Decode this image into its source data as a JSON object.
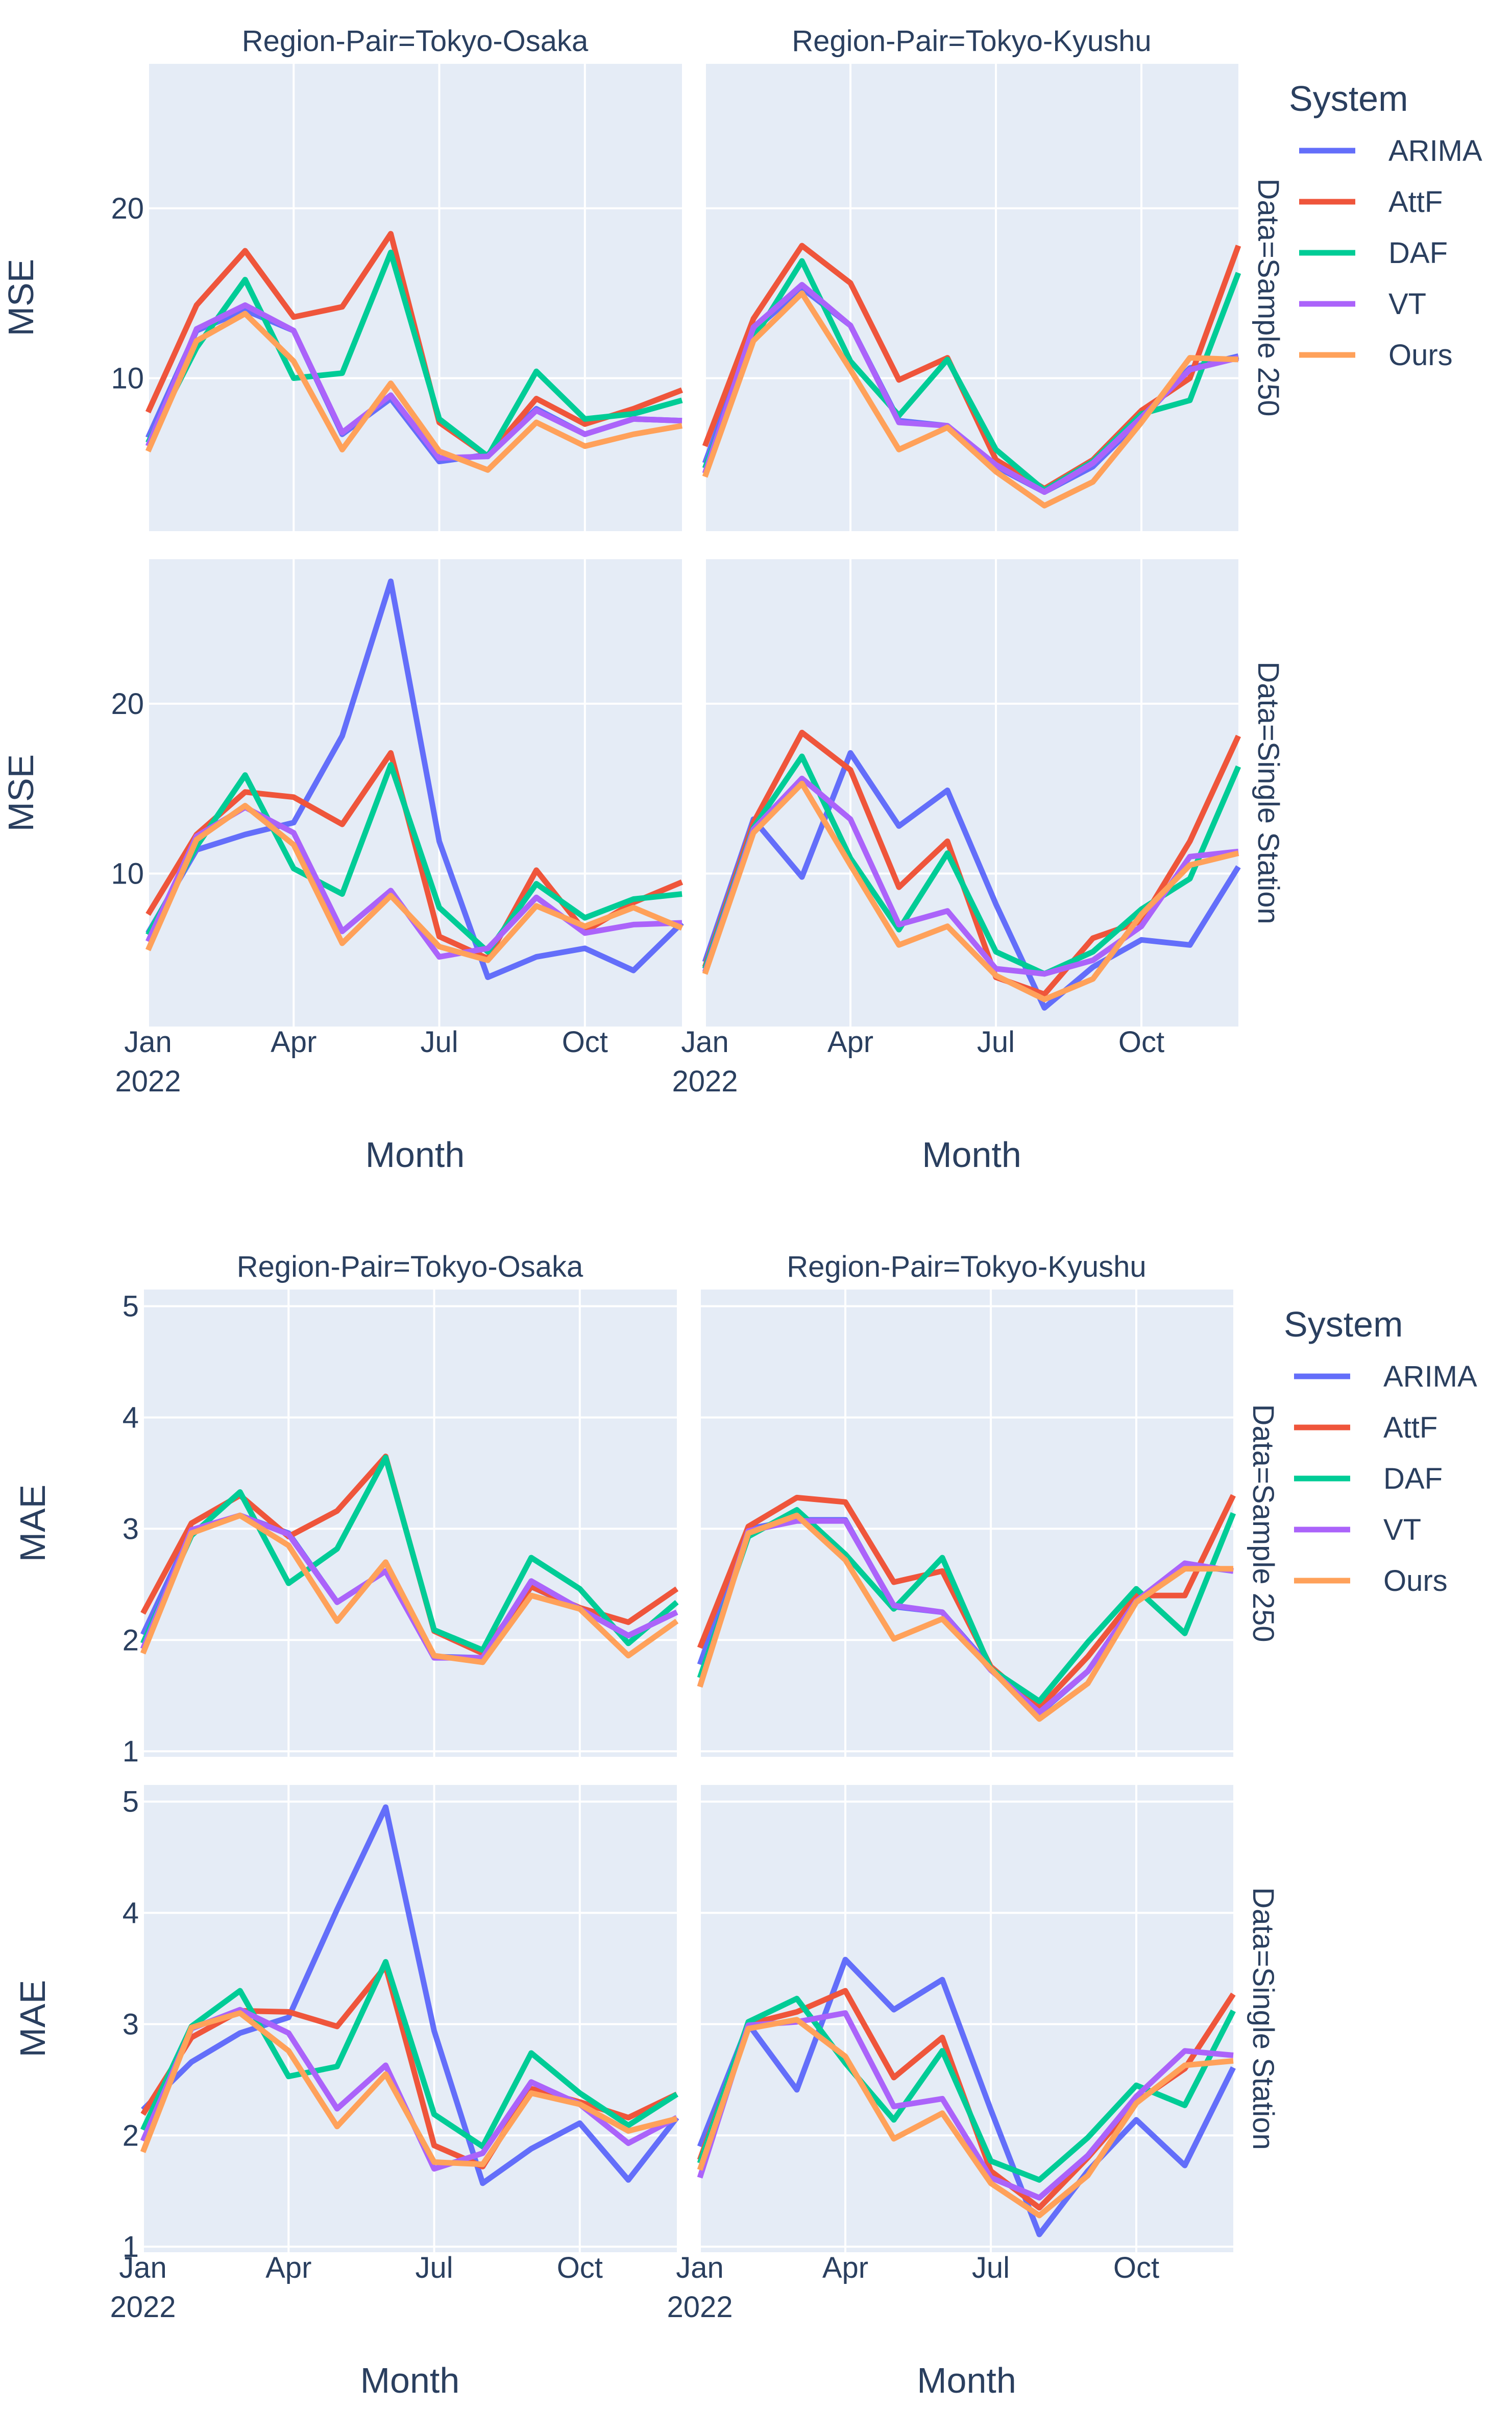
{
  "colors": {
    "plot_bg": "#E5ECF6",
    "grid": "#ffffff",
    "text": "#2a3f5f",
    "ARIMA": "#636EFA",
    "AttF": "#EF553B",
    "DAF": "#00CC96",
    "VT": "#AB63FA",
    "Ours": "#FFA15A"
  },
  "chart_data": [
    {
      "type": "line",
      "metric": "MSE",
      "ylabel": "MSE",
      "xlabel": "Month",
      "legend_title": "System",
      "legend_position": "top-right",
      "column_titles": [
        "Region-Pair=Tokyo-Osaka",
        "Region-Pair=Tokyo-Kyushu"
      ],
      "row_titles": [
        "Data=Sample 250",
        "Data=Single Station"
      ],
      "x": [
        "2022-01",
        "2022-02",
        "2022-03",
        "2022-04",
        "2022-05",
        "2022-06",
        "2022-07",
        "2022-08",
        "2022-09",
        "2022-10",
        "2022-11",
        "2022-12"
      ],
      "x_ticks": [
        {
          "month": 0,
          "label": "Jan",
          "year": "2022"
        },
        {
          "month": 3,
          "label": "Apr",
          "year": ""
        },
        {
          "month": 6,
          "label": "Jul",
          "year": ""
        },
        {
          "month": 9,
          "label": "Oct",
          "year": ""
        }
      ],
      "y_range": [
        1,
        28.5
      ],
      "y_ticks": [
        10,
        20
      ],
      "series_names": [
        "ARIMA",
        "AttF",
        "DAF",
        "VT",
        "Ours"
      ],
      "panels": [
        {
          "row": 0,
          "col": 0,
          "series": [
            {
              "name": "ARIMA",
              "values": [
                6.5,
                12.8,
                14.0,
                12.8,
                6.7,
                8.8,
                5.1,
                5.5,
                8.2,
                6.7,
                7.6,
                7.5
              ]
            },
            {
              "name": "AttF",
              "values": [
                8.0,
                14.3,
                17.5,
                13.6,
                14.2,
                18.5,
                7.4,
                5.4,
                8.8,
                7.3,
                8.2,
                9.3
              ]
            },
            {
              "name": "DAF",
              "values": [
                6.2,
                11.8,
                15.8,
                10.0,
                10.3,
                17.4,
                7.6,
                5.4,
                10.4,
                7.6,
                7.9,
                8.7
              ]
            },
            {
              "name": "VT",
              "values": [
                6.0,
                12.9,
                14.3,
                12.8,
                6.8,
                9.0,
                5.3,
                5.4,
                8.1,
                6.7,
                7.6,
                7.5
              ]
            },
            {
              "name": "Ours",
              "values": [
                5.7,
                12.2,
                13.8,
                11.0,
                5.8,
                9.7,
                5.7,
                4.6,
                7.4,
                6.0,
                6.7,
                7.2
              ]
            }
          ]
        },
        {
          "row": 0,
          "col": 1,
          "series": [
            {
              "name": "ARIMA",
              "values": [
                5.0,
                12.8,
                15.3,
                13.1,
                7.5,
                7.2,
                4.8,
                3.3,
                4.8,
                7.6,
                10.6,
                11.3
              ]
            },
            {
              "name": "AttF",
              "values": [
                6.0,
                13.5,
                17.8,
                15.6,
                9.9,
                11.2,
                5.2,
                3.5,
                5.2,
                8.1,
                10.0,
                17.8
              ]
            },
            {
              "name": "DAF",
              "values": [
                4.7,
                12.3,
                16.9,
                11.0,
                7.8,
                11.1,
                5.8,
                3.4,
                5.1,
                7.9,
                8.7,
                16.2
              ]
            },
            {
              "name": "VT",
              "values": [
                4.4,
                13.0,
                15.5,
                13.1,
                7.4,
                7.2,
                4.9,
                3.3,
                5.0,
                7.7,
                10.5,
                11.2
              ]
            },
            {
              "name": "Ours",
              "values": [
                4.2,
                12.2,
                15.0,
                10.5,
                5.8,
                7.1,
                4.5,
                2.5,
                3.9,
                7.4,
                11.2,
                11.1
              ]
            }
          ]
        },
        {
          "row": 1,
          "col": 0,
          "series": [
            {
              "name": "ARIMA",
              "values": [
                6.5,
                11.4,
                12.3,
                13.0,
                18.1,
                27.2,
                11.9,
                3.9,
                5.1,
                5.6,
                4.3,
                7.1
              ]
            },
            {
              "name": "AttF",
              "values": [
                7.6,
                12.3,
                14.8,
                14.5,
                12.9,
                17.1,
                6.3,
                5.0,
                10.2,
                6.6,
                8.3,
                9.5
              ]
            },
            {
              "name": "DAF",
              "values": [
                6.4,
                11.6,
                15.8,
                10.3,
                8.8,
                16.4,
                8.0,
                5.4,
                9.4,
                7.4,
                8.5,
                8.8
              ]
            },
            {
              "name": "VT",
              "values": [
                6.0,
                12.2,
                13.9,
                12.4,
                6.6,
                9.0,
                5.1,
                5.6,
                8.6,
                6.5,
                7.0,
                7.1
              ]
            },
            {
              "name": "Ours",
              "values": [
                5.5,
                12.0,
                14.0,
                11.7,
                5.9,
                8.7,
                5.7,
                4.9,
                8.1,
                6.9,
                8.0,
                6.8
              ]
            }
          ]
        },
        {
          "row": 1,
          "col": 1,
          "series": [
            {
              "name": "ARIMA",
              "values": [
                4.8,
                13.2,
                9.8,
                17.1,
                12.8,
                14.9,
                8.2,
                2.1,
                4.5,
                6.1,
                5.8,
                10.4
              ]
            },
            {
              "name": "AttF",
              "values": [
                4.5,
                13.0,
                18.3,
                16.1,
                9.2,
                11.9,
                3.9,
                2.9,
                6.2,
                7.2,
                11.9,
                18.1
              ]
            },
            {
              "name": "DAF",
              "values": [
                4.4,
                12.7,
                16.9,
                10.9,
                6.7,
                11.2,
                5.4,
                4.1,
                5.4,
                7.9,
                9.7,
                16.3
              ]
            },
            {
              "name": "VT",
              "values": [
                4.2,
                12.6,
                15.6,
                13.2,
                7.0,
                7.8,
                4.4,
                4.1,
                4.9,
                6.9,
                11.0,
                11.3
              ]
            },
            {
              "name": "Ours",
              "values": [
                4.1,
                12.4,
                15.3,
                10.5,
                5.8,
                6.9,
                4.0,
                2.6,
                3.8,
                7.6,
                10.5,
                11.2
              ]
            }
          ]
        }
      ]
    },
    {
      "type": "line",
      "metric": "MAE",
      "ylabel": "MAE",
      "xlabel": "Month",
      "legend_title": "System",
      "legend_position": "top-right",
      "column_titles": [
        "Region-Pair=Tokyo-Osaka",
        "Region-Pair=Tokyo-Kyushu"
      ],
      "row_titles": [
        "Data=Sample 250",
        "Data=Single Station"
      ],
      "x": [
        "2022-01",
        "2022-02",
        "2022-03",
        "2022-04",
        "2022-05",
        "2022-06",
        "2022-07",
        "2022-08",
        "2022-09",
        "2022-10",
        "2022-11",
        "2022-12"
      ],
      "x_ticks": [
        {
          "month": 0,
          "label": "Jan",
          "year": "2022"
        },
        {
          "month": 3,
          "label": "Apr",
          "year": ""
        },
        {
          "month": 6,
          "label": "Jul",
          "year": ""
        },
        {
          "month": 9,
          "label": "Oct",
          "year": ""
        }
      ],
      "y_range": [
        0.95,
        5.15
      ],
      "y_ticks": [
        1,
        2,
        3,
        4,
        5
      ],
      "series_names": [
        "ARIMA",
        "AttF",
        "DAF",
        "VT",
        "Ours"
      ],
      "panels": [
        {
          "row": 0,
          "col": 0,
          "series": [
            {
              "name": "ARIMA",
              "values": [
                2.05,
                2.98,
                3.12,
                2.96,
                2.34,
                2.62,
                1.85,
                1.84,
                2.48,
                2.28,
                2.04,
                2.25
              ]
            },
            {
              "name": "AttF",
              "values": [
                2.24,
                3.05,
                3.3,
                2.93,
                3.16,
                3.65,
                2.08,
                1.88,
                2.48,
                2.29,
                2.16,
                2.46
              ]
            },
            {
              "name": "DAF",
              "values": [
                1.97,
                2.94,
                3.33,
                2.51,
                2.82,
                3.64,
                2.09,
                1.91,
                2.74,
                2.46,
                1.97,
                2.34
              ]
            },
            {
              "name": "VT",
              "values": [
                1.92,
                2.99,
                3.12,
                2.95,
                2.34,
                2.62,
                1.84,
                1.84,
                2.53,
                2.28,
                2.04,
                2.25
              ]
            },
            {
              "name": "Ours",
              "values": [
                1.88,
                2.96,
                3.12,
                2.85,
                2.17,
                2.7,
                1.86,
                1.8,
                2.4,
                2.28,
                1.86,
                2.17
              ]
            }
          ]
        },
        {
          "row": 0,
          "col": 1,
          "series": [
            {
              "name": "ARIMA",
              "values": [
                1.78,
                3.0,
                3.08,
                3.08,
                2.3,
                2.25,
                1.75,
                1.34,
                1.72,
                2.35,
                2.68,
                2.62
              ]
            },
            {
              "name": "AttF",
              "values": [
                1.93,
                3.02,
                3.28,
                3.24,
                2.52,
                2.62,
                1.76,
                1.39,
                1.85,
                2.4,
                2.4,
                3.3
              ]
            },
            {
              "name": "DAF",
              "values": [
                1.66,
                2.93,
                3.17,
                2.77,
                2.28,
                2.74,
                1.74,
                1.45,
                1.98,
                2.46,
                2.06,
                3.14
              ]
            },
            {
              "name": "VT",
              "values": [
                1.58,
                2.98,
                3.07,
                3.07,
                2.31,
                2.25,
                1.73,
                1.35,
                1.72,
                2.35,
                2.69,
                2.62
              ]
            },
            {
              "name": "Ours",
              "values": [
                1.58,
                2.96,
                3.12,
                2.72,
                2.01,
                2.19,
                1.74,
                1.29,
                1.61,
                2.34,
                2.64,
                2.64
              ]
            }
          ]
        },
        {
          "row": 1,
          "col": 0,
          "series": [
            {
              "name": "ARIMA",
              "values": [
                2.23,
                2.66,
                2.92,
                3.06,
                4.03,
                4.95,
                2.94,
                1.57,
                1.88,
                2.11,
                1.6,
                2.16
              ]
            },
            {
              "name": "AttF",
              "values": [
                2.19,
                2.88,
                3.12,
                3.11,
                2.98,
                3.52,
                1.91,
                1.72,
                2.42,
                2.3,
                2.16,
                2.37
              ]
            },
            {
              "name": "DAF",
              "values": [
                2.05,
                2.98,
                3.3,
                2.53,
                2.62,
                3.56,
                2.19,
                1.9,
                2.74,
                2.38,
                2.09,
                2.37
              ]
            },
            {
              "name": "VT",
              "values": [
                1.95,
                2.96,
                3.13,
                2.92,
                2.24,
                2.63,
                1.7,
                1.84,
                2.48,
                2.28,
                1.93,
                2.16
              ]
            },
            {
              "name": "Ours",
              "values": [
                1.85,
                2.97,
                3.1,
                2.76,
                2.08,
                2.55,
                1.76,
                1.74,
                2.38,
                2.28,
                2.04,
                2.15
              ]
            }
          ]
        },
        {
          "row": 1,
          "col": 1,
          "series": [
            {
              "name": "ARIMA",
              "values": [
                1.9,
                3.0,
                2.41,
                3.58,
                3.13,
                3.4,
                2.23,
                1.11,
                1.68,
                2.14,
                1.73,
                2.61
              ]
            },
            {
              "name": "AttF",
              "values": [
                1.78,
                3.0,
                3.11,
                3.3,
                2.52,
                2.88,
                1.68,
                1.35,
                1.8,
                2.3,
                2.6,
                3.27
              ]
            },
            {
              "name": "DAF",
              "values": [
                1.75,
                3.02,
                3.23,
                2.65,
                2.14,
                2.76,
                1.77,
                1.6,
                1.98,
                2.45,
                2.27,
                3.12
              ]
            },
            {
              "name": "VT",
              "values": [
                1.62,
                2.99,
                3.02,
                3.1,
                2.26,
                2.33,
                1.62,
                1.44,
                1.82,
                2.35,
                2.76,
                2.72
              ]
            },
            {
              "name": "Ours",
              "values": [
                1.69,
                2.96,
                3.04,
                2.71,
                1.97,
                2.2,
                1.57,
                1.28,
                1.64,
                2.29,
                2.63,
                2.67
              ]
            }
          ]
        }
      ]
    }
  ]
}
